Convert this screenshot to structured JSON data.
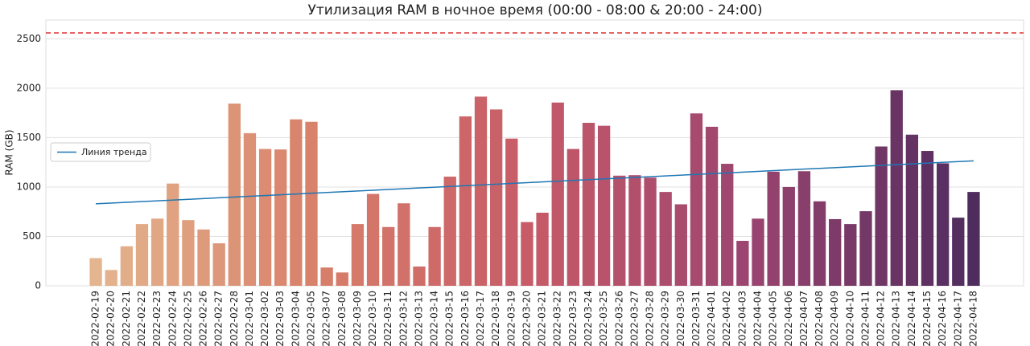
{
  "chart_data": {
    "type": "bar",
    "title": "Утилизация RAM в ночное время (00:00 - 08:00 & 20:00 - 24:00)",
    "y_label": "RAM (GB)",
    "categories": [
      "2022-02-19",
      "2022-02-20",
      "2022-02-21",
      "2022-02-22",
      "2022-02-23",
      "2022-02-24",
      "2022-02-25",
      "2022-02-26",
      "2022-02-27",
      "2022-02-28",
      "2022-03-01",
      "2022-03-02",
      "2022-03-03",
      "2022-03-04",
      "2022-03-05",
      "2022-03-07",
      "2022-03-08",
      "2022-03-09",
      "2022-03-10",
      "2022-03-11",
      "2022-03-12",
      "2022-03-13",
      "2022-03-14",
      "2022-03-15",
      "2022-03-16",
      "2022-03-17",
      "2022-03-18",
      "2022-03-19",
      "2022-03-20",
      "2022-03-21",
      "2022-03-22",
      "2022-03-23",
      "2022-03-24",
      "2022-03-25",
      "2022-03-26",
      "2022-03-27",
      "2022-03-28",
      "2022-03-29",
      "2022-03-30",
      "2022-03-31",
      "2022-04-01",
      "2022-04-02",
      "2022-04-03",
      "2022-04-04",
      "2022-04-05",
      "2022-04-06",
      "2022-04-07",
      "2022-04-08",
      "2022-04-09",
      "2022-04-10",
      "2022-04-11",
      "2022-04-12",
      "2022-04-13",
      "2022-04-14",
      "2022-04-15",
      "2022-04-16",
      "2022-04-17",
      "2022-04-18"
    ],
    "values": [
      280,
      160,
      400,
      625,
      680,
      1035,
      665,
      570,
      430,
      1845,
      1545,
      1385,
      1380,
      1685,
      1660,
      185,
      135,
      625,
      930,
      595,
      835,
      195,
      595,
      1105,
      1715,
      1915,
      1785,
      1490,
      645,
      740,
      1855,
      1385,
      1650,
      1620,
      1115,
      1120,
      1095,
      950,
      825,
      1745,
      1610,
      1235,
      455,
      680,
      1155,
      1000,
      1160,
      855,
      675,
      625,
      755,
      1410,
      1980,
      1530,
      1365,
      1240,
      690,
      950
    ],
    "palette": [
      "#e4b58e",
      "#d8806a",
      "#c65a68",
      "#9a4470",
      "#4f2c5e"
    ],
    "trend": {
      "name": "Линия тренда",
      "start": 830,
      "end": 1265,
      "color": "#1f77b4"
    },
    "threshold": {
      "value": 2560,
      "color": "#e03030"
    },
    "ylim": [
      0,
      2690
    ],
    "yticks": [
      0,
      500,
      1000,
      1500,
      2000,
      2500
    ],
    "grid": true,
    "legend": "left"
  }
}
